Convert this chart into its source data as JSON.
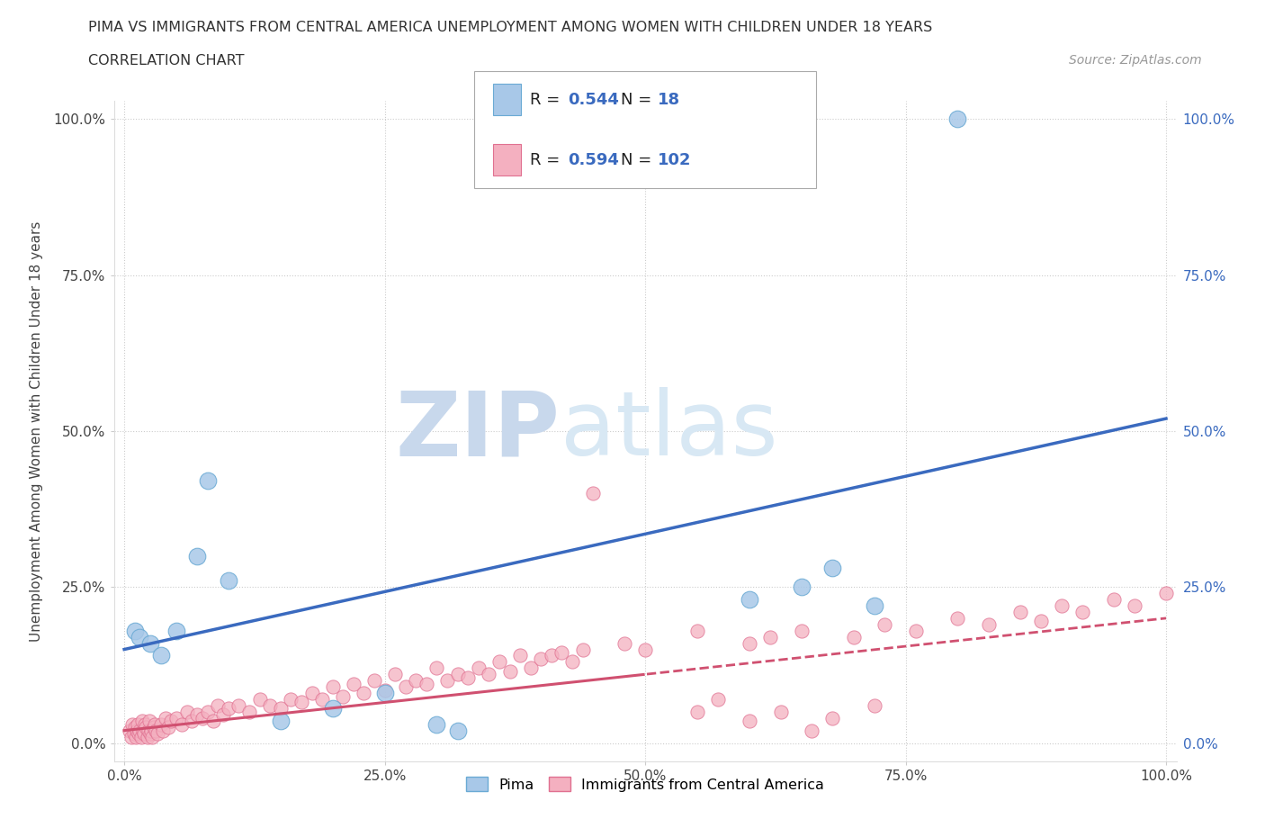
{
  "title": "PIMA VS IMMIGRANTS FROM CENTRAL AMERICA UNEMPLOYMENT AMONG WOMEN WITH CHILDREN UNDER 18 YEARS",
  "subtitle": "CORRELATION CHART",
  "source": "Source: ZipAtlas.com",
  "ylabel": "Unemployment Among Women with Children Under 18 years",
  "xtick_labels": [
    "0.0%",
    "25.0%",
    "50.0%",
    "75.0%",
    "100.0%"
  ],
  "ytick_labels": [
    "0.0%",
    "25.0%",
    "50.0%",
    "75.0%",
    "100.0%"
  ],
  "watermark_zip": "ZIP",
  "watermark_atlas": "atlas",
  "pima_color": "#a8c8e8",
  "pima_edge_color": "#6aaad4",
  "immigrants_color": "#f4b0c0",
  "immigrants_edge_color": "#e07090",
  "pima_line_color": "#3a6abf",
  "immigrants_line_color": "#d05070",
  "legend_R_color": "#3a6abf",
  "background_color": "#ffffff",
  "grid_color": "#cccccc",
  "pima_R": 0.544,
  "pima_N": 18,
  "immigrants_R": 0.594,
  "immigrants_N": 102,
  "pima_x": [
    1.0,
    1.5,
    2.5,
    3.5,
    5.0,
    7.0,
    8.0,
    10.0,
    15.0,
    20.0,
    25.0,
    30.0,
    32.0,
    60.0,
    65.0,
    68.0,
    72.0,
    80.0
  ],
  "pima_y": [
    18.0,
    17.0,
    16.0,
    14.0,
    18.0,
    30.0,
    42.0,
    26.0,
    3.5,
    5.5,
    8.0,
    3.0,
    2.0,
    23.0,
    25.0,
    28.0,
    22.0,
    100.0
  ],
  "imm_x": [
    0.5,
    0.7,
    0.8,
    0.9,
    1.0,
    1.1,
    1.2,
    1.3,
    1.4,
    1.5,
    1.6,
    1.7,
    1.8,
    1.9,
    2.0,
    2.1,
    2.2,
    2.3,
    2.4,
    2.5,
    2.6,
    2.7,
    2.8,
    2.9,
    3.0,
    3.2,
    3.5,
    3.7,
    4.0,
    4.2,
    4.5,
    5.0,
    5.5,
    6.0,
    6.5,
    7.0,
    7.5,
    8.0,
    8.5,
    9.0,
    9.5,
    10.0,
    11.0,
    12.0,
    13.0,
    14.0,
    15.0,
    16.0,
    17.0,
    18.0,
    19.0,
    20.0,
    21.0,
    22.0,
    23.0,
    24.0,
    25.0,
    26.0,
    27.0,
    28.0,
    29.0,
    30.0,
    31.0,
    32.0,
    33.0,
    34.0,
    35.0,
    36.0,
    37.0,
    38.0,
    39.0,
    40.0,
    41.0,
    42.0,
    43.0,
    44.0,
    45.0,
    48.0,
    50.0,
    55.0,
    60.0,
    62.0,
    65.0,
    70.0,
    73.0,
    76.0,
    80.0,
    83.0,
    86.0,
    88.0,
    90.0,
    92.0,
    95.0,
    97.0,
    100.0,
    55.0,
    57.0,
    60.0,
    63.0,
    66.0,
    68.0,
    72.0
  ],
  "imm_y": [
    2.0,
    1.0,
    3.0,
    1.5,
    2.5,
    1.0,
    2.0,
    3.0,
    1.5,
    2.0,
    1.0,
    3.5,
    2.0,
    1.5,
    3.0,
    2.5,
    1.0,
    2.0,
    3.5,
    1.5,
    2.0,
    1.0,
    2.5,
    3.0,
    2.0,
    1.5,
    3.0,
    2.0,
    4.0,
    2.5,
    3.5,
    4.0,
    3.0,
    5.0,
    3.5,
    4.5,
    4.0,
    5.0,
    3.5,
    6.0,
    4.5,
    5.5,
    6.0,
    5.0,
    7.0,
    6.0,
    5.5,
    7.0,
    6.5,
    8.0,
    7.0,
    9.0,
    7.5,
    9.5,
    8.0,
    10.0,
    8.5,
    11.0,
    9.0,
    10.0,
    9.5,
    12.0,
    10.0,
    11.0,
    10.5,
    12.0,
    11.0,
    13.0,
    11.5,
    14.0,
    12.0,
    13.5,
    14.0,
    14.5,
    13.0,
    15.0,
    40.0,
    16.0,
    15.0,
    18.0,
    16.0,
    17.0,
    18.0,
    17.0,
    19.0,
    18.0,
    20.0,
    19.0,
    21.0,
    19.5,
    22.0,
    21.0,
    23.0,
    22.0,
    24.0,
    5.0,
    7.0,
    3.5,
    5.0,
    2.0,
    4.0,
    6.0
  ]
}
